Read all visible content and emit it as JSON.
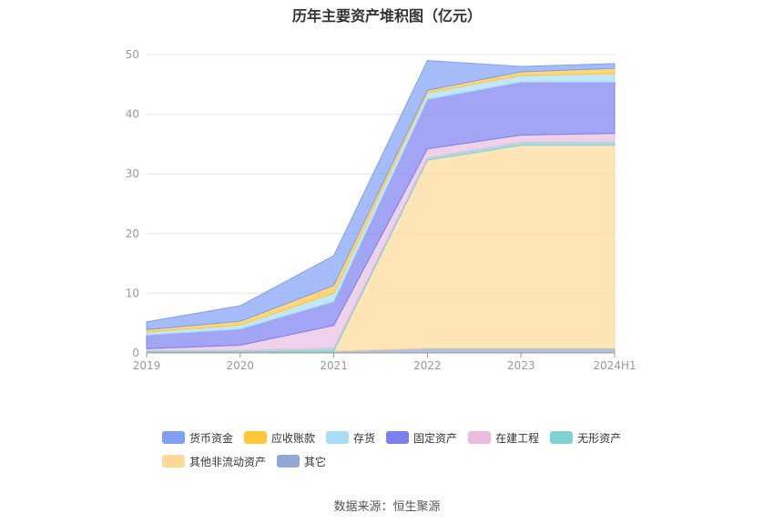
{
  "chart_data": {
    "type": "area",
    "stacked": true,
    "title": "历年主要资产堆积图（亿元）",
    "x": [
      "2019",
      "2020",
      "2021",
      "2022",
      "2023",
      "2024H1"
    ],
    "ylim": [
      0,
      50
    ],
    "yticks": [
      0,
      10,
      20,
      30,
      40,
      50
    ],
    "grid": true,
    "legend_position": "bottom",
    "series": [
      {
        "name": "其它",
        "color": "#8fa8d8",
        "values": [
          0.2,
          0.2,
          0.3,
          0.8,
          0.8,
          0.8
        ]
      },
      {
        "name": "其他非流动资产",
        "color": "#ffd99a",
        "values": [
          0.0,
          0.0,
          0.0,
          31.5,
          34.0,
          34.0
        ]
      },
      {
        "name": "无形资产",
        "color": "#7fd3d3",
        "values": [
          0.2,
          0.2,
          0.5,
          0.4,
          0.5,
          0.5
        ]
      },
      {
        "name": "在建工程",
        "color": "#e8bde0",
        "values": [
          0.3,
          0.9,
          3.8,
          1.5,
          1.2,
          1.5
        ]
      },
      {
        "name": "固定资产",
        "color": "#7b7ff0",
        "values": [
          2.3,
          2.7,
          4.0,
          8.3,
          8.9,
          8.6
        ]
      },
      {
        "name": "存货",
        "color": "#a8ddf7",
        "values": [
          0.5,
          0.7,
          1.4,
          1.1,
          1.1,
          1.4
        ]
      },
      {
        "name": "应收账款",
        "color": "#ffc73a",
        "values": [
          0.4,
          0.6,
          1.3,
          0.4,
          0.6,
          0.9
        ]
      },
      {
        "name": "货币资金",
        "color": "#7f9ff5",
        "values": [
          1.3,
          2.6,
          5.0,
          5.0,
          0.9,
          0.8
        ]
      }
    ],
    "legend_order": [
      "货币资金",
      "应收账款",
      "存货",
      "固定资产",
      "在建工程",
      "无形资产",
      "其他非流动资产",
      "其它"
    ]
  },
  "source": "数据来源：恒生聚源"
}
